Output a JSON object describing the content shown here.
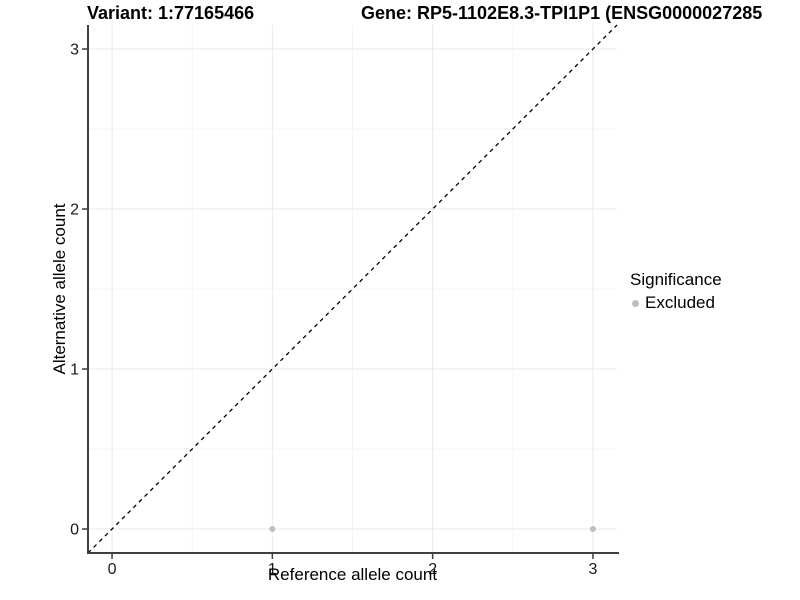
{
  "header": {
    "variant_title": "Variant: 1:77165466",
    "gene_title": "Gene: RP5-1102E8.3-TPI1P1 (ENSG0000027285"
  },
  "chart_data": {
    "type": "scatter",
    "titles": {
      "variant": "Variant: 1:77165466",
      "gene": "Gene: RP5-1102E8.3-TPI1P1 (ENSG0000027285"
    },
    "xlabel": "Reference allele count",
    "ylabel": "Alternative allele count",
    "xlim": [
      -0.15,
      3.15
    ],
    "ylim": [
      -0.15,
      3.15
    ],
    "x_ticks": [
      0,
      1,
      2,
      3
    ],
    "y_ticks": [
      0,
      1,
      2,
      3
    ],
    "minor_ticks": [
      0.5,
      1.5,
      2.5
    ],
    "grid": true,
    "identity_line": {
      "style": "dashed",
      "color": "#000000",
      "from": [
        -0.15,
        -0.15
      ],
      "to": [
        3.15,
        3.15
      ]
    },
    "series": [
      {
        "name": "Excluded",
        "color": "#bebebe",
        "points": [
          [
            1,
            0
          ],
          [
            3,
            0
          ]
        ]
      }
    ],
    "legend": {
      "title": "Significance",
      "position": "right",
      "entries": [
        {
          "label": "Excluded",
          "color": "#bebebe"
        }
      ]
    }
  },
  "colors": {
    "axis": "#3f3f3f",
    "grid_major": "#e9e9e9",
    "grid_minor": "#f4f4f4",
    "point": "#bebebe",
    "dashed_line": "#000000"
  }
}
